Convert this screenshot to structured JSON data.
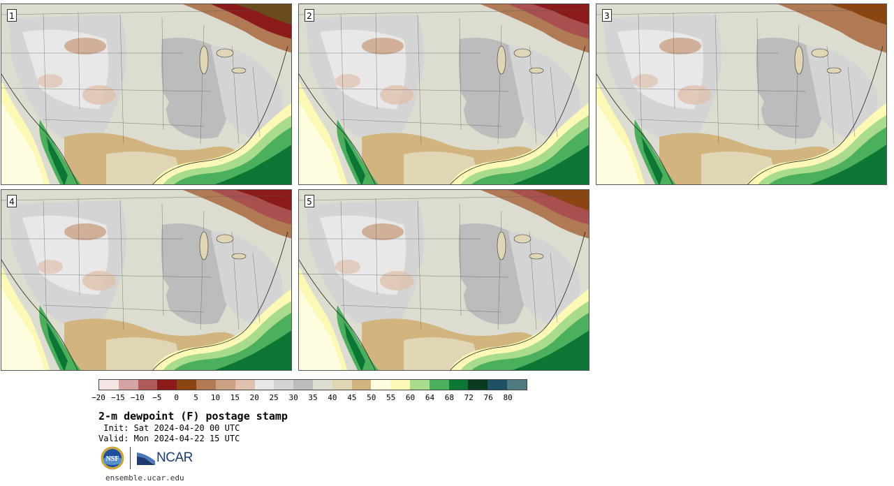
{
  "panels": [
    {
      "label": "1",
      "north_dry": "#6b4a1c",
      "north_dry2": "#8b1a1a"
    },
    {
      "label": "2",
      "north_dry": "#8b1a1a",
      "north_dry2": "#a94f4f"
    },
    {
      "label": "3",
      "north_dry": "#8b4513",
      "north_dry2": "#b07a54"
    },
    {
      "label": "4",
      "north_dry": "#8b1a1a",
      "north_dry2": "#a94f4f"
    },
    {
      "label": "5",
      "north_dry": "#8b4513",
      "north_dry2": "#a94f4f"
    }
  ],
  "colorbar": {
    "colors": [
      "#f5e6e6",
      "#d4a3a3",
      "#b05a5a",
      "#8b1a1a",
      "#8b4513",
      "#b07a54",
      "#c9a183",
      "#dfc1ae",
      "#e8e8e8",
      "#d4d4d4",
      "#bcbcbc",
      "#dcdcd0",
      "#e0d5b5",
      "#d2b47e",
      "#fffde0",
      "#fbf9b5",
      "#a8dc8c",
      "#4caf5e",
      "#0c7634",
      "#0a3b20",
      "#1e5163",
      "#4f7a80"
    ],
    "tick_labels": [
      "−20",
      "−15",
      "−10",
      "−5",
      "0",
      "5",
      "10",
      "15",
      "20",
      "25",
      "30",
      "35",
      "40",
      "45",
      "50",
      "55",
      "60",
      "64",
      "68",
      "72",
      "76",
      "80"
    ]
  },
  "title": "2-m dewpoint (F) postage stamp",
  "init_line": " Init: Sat 2024-04-20 00 UTC",
  "valid_line": "Valid: Mon 2024-04-22 15 UTC",
  "logos": {
    "nsf_text": "NSF",
    "ncar_text": "NCAR",
    "ncar_color": "#1f3a6e"
  },
  "site": "ensemble.ucar.edu"
}
